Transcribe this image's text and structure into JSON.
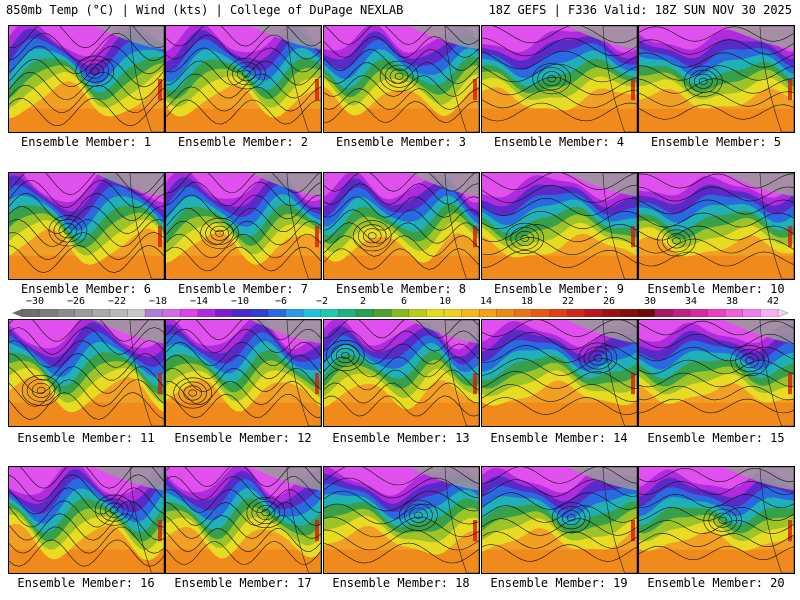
{
  "header": {
    "left": "850mb Temp (°C) | Wind (kts) | College of DuPage NEXLAB",
    "right": "18Z GEFS | F336 Valid: 18Z SUN NOV 30 2025"
  },
  "members": [
    {
      "label": "Ensemble Member: 1"
    },
    {
      "label": "Ensemble Member: 2"
    },
    {
      "label": "Ensemble Member: 3"
    },
    {
      "label": "Ensemble Member: 4"
    },
    {
      "label": "Ensemble Member: 5"
    },
    {
      "label": "Ensemble Member: 6"
    },
    {
      "label": "Ensemble Member: 7"
    },
    {
      "label": "Ensemble Member: 8"
    },
    {
      "label": "Ensemble Member: 9"
    },
    {
      "label": "Ensemble Member: 10"
    },
    {
      "label": "Ensemble Member: 11"
    },
    {
      "label": "Ensemble Member: 12"
    },
    {
      "label": "Ensemble Member: 13"
    },
    {
      "label": "Ensemble Member: 14"
    },
    {
      "label": "Ensemble Member: 15"
    },
    {
      "label": "Ensemble Member: 16"
    },
    {
      "label": "Ensemble Member: 17"
    },
    {
      "label": "Ensemble Member: 18"
    },
    {
      "label": "Ensemble Member: 19"
    },
    {
      "label": "Ensemble Member: 20"
    }
  ],
  "colorbar": {
    "labels": [
      "−30",
      "−26",
      "−22",
      "−18",
      "−14",
      "−10",
      "−6",
      "−2",
      "2",
      "6",
      "10",
      "14",
      "18",
      "22",
      "26",
      "30",
      "34",
      "38",
      "42"
    ],
    "colors": [
      "#6e6e6e",
      "#7d7d7d",
      "#8c8c8c",
      "#9b9b9b",
      "#aaaaaa",
      "#b9b9b9",
      "#c8c8c8",
      "#ad7fd6",
      "#d26be6",
      "#e040f0",
      "#b02ae0",
      "#7a1fd0",
      "#4a2ac8",
      "#3040d0",
      "#2a6ae0",
      "#2a9ae8",
      "#20c0e0",
      "#20c8b0",
      "#20b080",
      "#28a050",
      "#50a030",
      "#88b820",
      "#b8cc20",
      "#e0dc20",
      "#f0d020",
      "#f8b818",
      "#f8a018",
      "#f08818",
      "#f07018",
      "#e85818",
      "#e04018",
      "#d02818",
      "#b81818",
      "#a01010",
      "#880c0c",
      "#700808",
      "#a81860",
      "#c02080",
      "#d828a0",
      "#e840c0",
      "#f060d8",
      "#f080e8",
      "#f8b0f4"
    ]
  }
}
